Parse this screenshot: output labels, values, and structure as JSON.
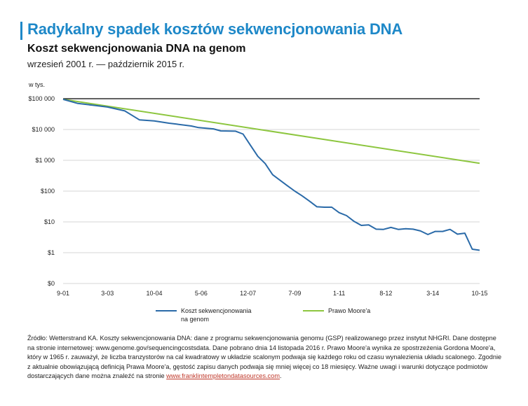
{
  "title": "Radykalny spadek kosztów sekwencjonowania DNA",
  "subtitle": "Koszt sekwencjonowania DNA na genom",
  "period": "wrzesień 2001 r. — październik 2015 r.",
  "unit_label": "w tys.",
  "colors": {
    "accent": "#1e88c8",
    "sequencing_cost": "#2a6aa8",
    "moore_law": "#8dc63f",
    "source_link": "#c0392b"
  },
  "legend": {
    "sequencing_cost": "Koszt sekwencjonowania na genom",
    "moore_law": "Prawo Moore'a"
  },
  "source": {
    "text": "Źródło: Wetterstrand KA. Koszty sekwencjonowania DNA: dane z programu sekwencjonowania genomu (GSP) realizowanego przez instytut NHGRI. Dane dostępne na stronie internetowej: www.genome.gov/sequencingcostsdata. Dane pobrano dnia 14 listopada 2016 r. Prawo Moore'a wynika ze spostrzeżenia Gordona Moore'a, który w 1965 r. zauważył, że liczba tranzystorów na cal kwadratowy w układzie scalonym podwaja się każdego roku od czasu wynalezienia układu scalonego. Zgodnie z aktualnie obowiązującą definicją Prawa Moore'a, gęstość zapisu danych podwaja się mniej więcej co 18 miesięcy. Ważne uwagi i warunki dotyczące podmiotów dostarczających dane można znaleźć na stronie ",
    "link": "www.franklintempletondatasources.com",
    "end": "."
  },
  "chart_data": {
    "type": "line",
    "scale": "log",
    "ylim": [
      0,
      100000
    ],
    "grid": "horizontal",
    "legend_position": "bottom",
    "y_ticks": [
      "$100 000",
      "$10 000",
      "$1 000",
      "$100",
      "$10",
      "$1",
      "$0"
    ],
    "x_ticks": [
      "9-01",
      "3-03",
      "10-04",
      "5-06",
      "12-07",
      "7-09",
      "1-11",
      "8-12",
      "3-14",
      "10-15"
    ],
    "series": [
      {
        "name": "Koszt sekwencjonowania na genom",
        "color": "#2a6aa8",
        "points": [
          [
            "2001-09",
            95263
          ],
          [
            "2002-03",
            70175
          ],
          [
            "2002-09",
            61448
          ],
          [
            "2003-03",
            53751
          ],
          [
            "2003-10",
            40157
          ],
          [
            "2004-01",
            28780
          ],
          [
            "2004-04",
            20442
          ],
          [
            "2004-10",
            19000
          ],
          [
            "2005-04",
            16000
          ],
          [
            "2005-07",
            15000
          ],
          [
            "2006-01",
            13000
          ],
          [
            "2006-04",
            11500
          ],
          [
            "2006-10",
            10500
          ],
          [
            "2007-01",
            9000
          ],
          [
            "2007-07",
            8800
          ],
          [
            "2007-10",
            7100
          ],
          [
            "2008-01",
            3100
          ],
          [
            "2008-04",
            1350
          ],
          [
            "2008-07",
            780
          ],
          [
            "2008-10",
            340
          ],
          [
            "2009-04",
            150
          ],
          [
            "2009-07",
            100
          ],
          [
            "2009-10",
            70
          ],
          [
            "2010-01",
            47
          ],
          [
            "2010-04",
            31
          ],
          [
            "2010-07",
            30
          ],
          [
            "2010-10",
            30
          ],
          [
            "2011-01",
            20
          ],
          [
            "2011-04",
            16
          ],
          [
            "2011-07",
            10.5
          ],
          [
            "2011-10",
            7.7
          ],
          [
            "2012-01",
            8
          ],
          [
            "2012-04",
            5.8
          ],
          [
            "2012-07",
            5.7
          ],
          [
            "2012-10",
            6.6
          ],
          [
            "2013-01",
            5.7
          ],
          [
            "2013-04",
            6
          ],
          [
            "2013-07",
            5.8
          ],
          [
            "2013-10",
            5.1
          ],
          [
            "2014-01",
            3.9
          ],
          [
            "2014-04",
            4.9
          ],
          [
            "2014-07",
            4.9
          ],
          [
            "2014-10",
            5.7
          ],
          [
            "2015-01",
            4
          ],
          [
            "2015-04",
            4.3
          ],
          [
            "2015-07",
            1.3
          ],
          [
            "2015-10",
            1.2
          ]
        ]
      },
      {
        "name": "Prawo Moore'a",
        "color": "#8dc63f",
        "points": [
          [
            "2001-09",
            95263
          ],
          [
            "2015-10",
            800
          ]
        ]
      }
    ]
  }
}
